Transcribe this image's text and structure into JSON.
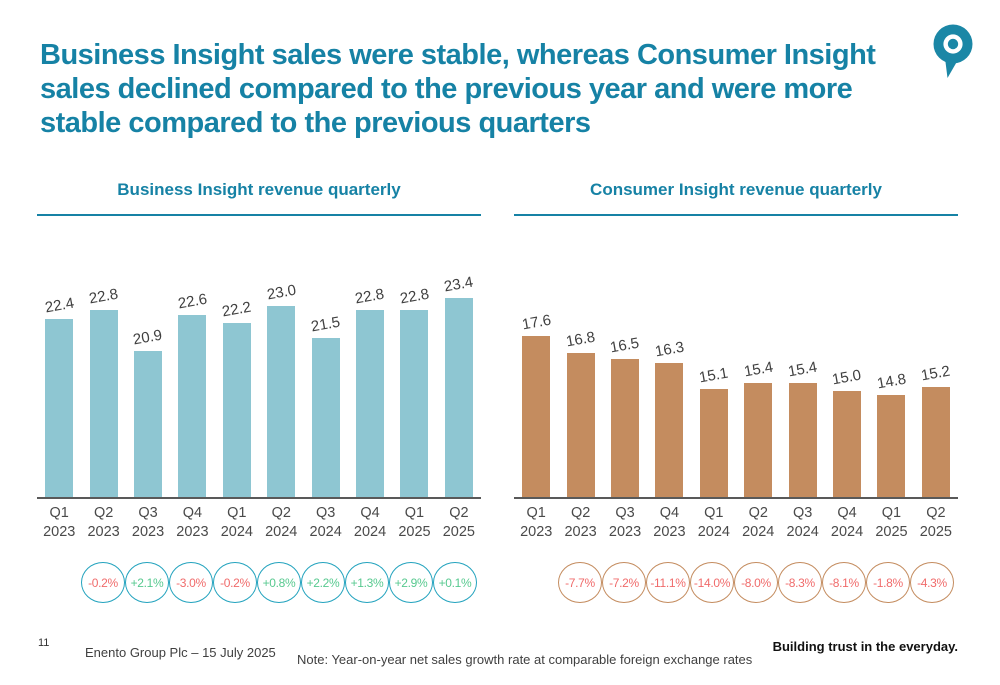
{
  "slide": {
    "title_lines": [
      "Business Insight sales were stable, whereas Consumer Insight",
      "sales declined compared to the previous year and were more",
      "stable compared to the previous quarters"
    ],
    "page_number": "11",
    "footer_left": "Enento Group Plc – 15 July 2025",
    "footer_note": "Note: Year-on-year net sales growth rate at comparable foreign exchange rates",
    "footer_tagline": "Building trust in the everyday.",
    "logo_icon": "enento-pin-logo",
    "colors": {
      "accent_teal": "#1682A5",
      "bar_blue": "#8EC6D2",
      "bar_tan": "#C48C5F",
      "positive_green": "#57C98F",
      "negative_red": "#F06B6B",
      "axis_gray": "#595959",
      "label_gray": "#404040"
    }
  },
  "chart_data": [
    {
      "type": "bar",
      "title": "Business Insight revenue quarterly",
      "categories": [
        "Q1 2023",
        "Q2 2023",
        "Q3 2023",
        "Q4 2023",
        "Q1 2024",
        "Q2 2024",
        "Q3 2024",
        "Q4 2024",
        "Q1 2025",
        "Q2 2025"
      ],
      "values": [
        22.4,
        22.8,
        20.9,
        22.6,
        22.2,
        23.0,
        21.5,
        22.8,
        22.8,
        23.4
      ],
      "growth_rates": [
        "-0.2%",
        "+2.1%",
        "-3.0%",
        "-0.2%",
        "+0.8%",
        "+2.2%",
        "+1.3%",
        "+2.9%",
        "+0.1%"
      ],
      "bar_color": "#8EC6D2",
      "oval_border_color": "#23A3BE",
      "ylim": [
        14,
        24
      ],
      "grid": false,
      "legend": false
    },
    {
      "type": "bar",
      "title": "Consumer Insight revenue quarterly",
      "categories": [
        "Q1 2023",
        "Q2 2023",
        "Q3 2023",
        "Q4 2023",
        "Q1 2024",
        "Q2 2024",
        "Q3 2024",
        "Q4 2024",
        "Q1 2025",
        "Q2 2025"
      ],
      "values": [
        17.6,
        16.8,
        16.5,
        16.3,
        15.1,
        15.4,
        15.4,
        15.0,
        14.8,
        15.2
      ],
      "growth_rates": [
        "-7.7%",
        "-7.2%",
        "-11.1%",
        "-14.0%",
        "-8.0%",
        "-8.3%",
        "-8.1%",
        "-1.8%",
        "-4.3%"
      ],
      "bar_color": "#C48C5F",
      "oval_border_color": "#C48C5F",
      "ylim": [
        10,
        20
      ],
      "grid": false,
      "legend": false
    }
  ]
}
